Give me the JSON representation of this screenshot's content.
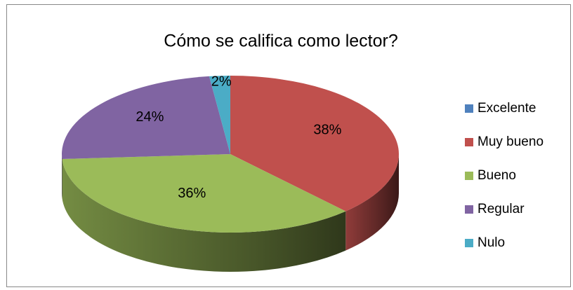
{
  "chart_data": {
    "type": "pie3d",
    "title": "Cómo se califica como lector?",
    "categories": [
      "Excelente",
      "Muy bueno",
      "Bueno",
      "Regular",
      "Nulo"
    ],
    "values": [
      0,
      38,
      36,
      24,
      2
    ],
    "value_labels": [
      null,
      "38%",
      "36%",
      "24%",
      "2%"
    ],
    "colors": [
      "#4f81bd",
      "#c0504d",
      "#9bbb59",
      "#8064a2",
      "#4bacc6"
    ],
    "legend": "right"
  }
}
